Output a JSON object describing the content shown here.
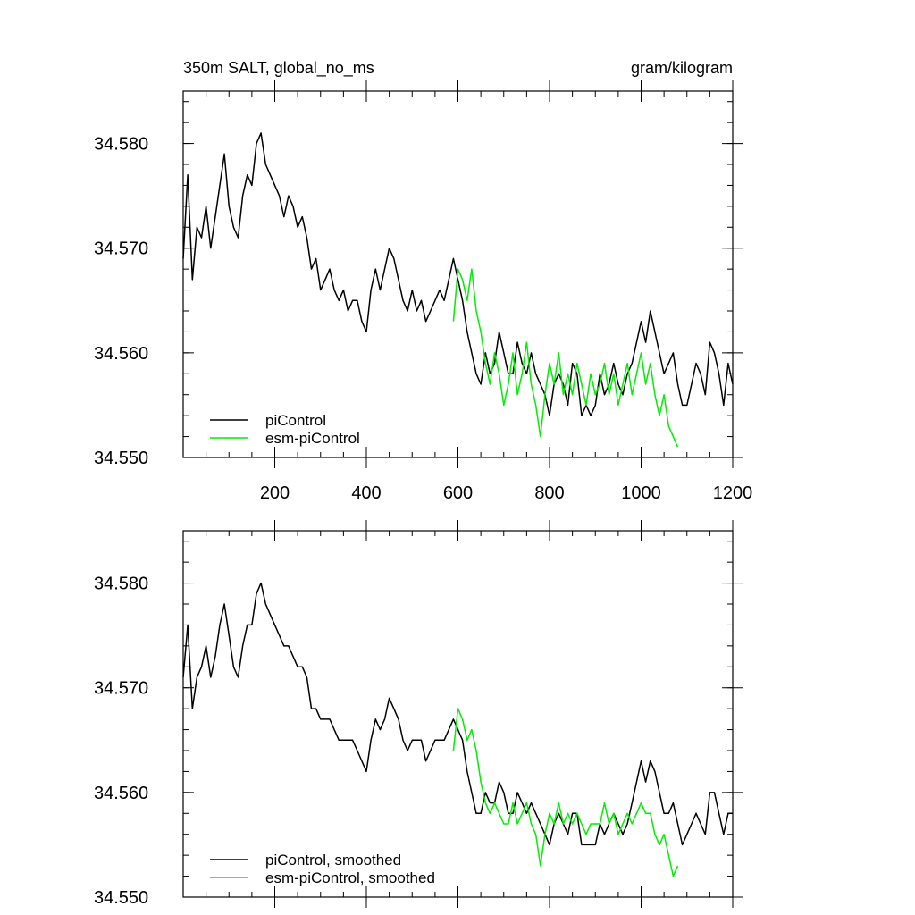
{
  "header": {
    "title": "350m SALT, global_no_ms",
    "units": "gram/kilogram"
  },
  "colors": {
    "piControl": "#000000",
    "esm-piControl": "#00ee00"
  },
  "chart_data": [
    {
      "type": "line",
      "panel": "top",
      "xlim": [
        0,
        1200
      ],
      "ylim": [
        34.55,
        34.585
      ],
      "xticks": [
        200,
        400,
        600,
        800,
        1000,
        1200
      ],
      "xtick_labels": [
        "200",
        "400",
        "600",
        "800",
        "1000",
        "1200"
      ],
      "yticks": [
        34.55,
        34.56,
        34.57,
        34.58
      ],
      "ytick_labels": [
        "34.550",
        "34.560",
        "34.570",
        "34.580"
      ],
      "legend_position": "bottom-left",
      "legend": [
        "piControl",
        "esm-piControl"
      ],
      "series": [
        {
          "name": "piControl",
          "color": "#000000",
          "x": [
            0,
            10,
            20,
            30,
            40,
            50,
            60,
            70,
            80,
            90,
            100,
            110,
            120,
            130,
            140,
            150,
            160,
            170,
            180,
            190,
            200,
            210,
            220,
            230,
            240,
            250,
            260,
            270,
            280,
            290,
            300,
            310,
            320,
            330,
            340,
            350,
            360,
            370,
            380,
            390,
            400,
            410,
            420,
            430,
            440,
            450,
            460,
            470,
            480,
            490,
            500,
            510,
            520,
            530,
            540,
            550,
            560,
            570,
            580,
            590,
            600,
            610,
            620,
            630,
            640,
            650,
            660,
            670,
            680,
            690,
            700,
            710,
            720,
            730,
            740,
            750,
            760,
            770,
            780,
            790,
            800,
            810,
            820,
            830,
            840,
            850,
            860,
            870,
            880,
            890,
            900,
            910,
            920,
            930,
            940,
            950,
            960,
            970,
            980,
            990,
            1000,
            1010,
            1020,
            1030,
            1040,
            1050,
            1060,
            1070,
            1080,
            1090,
            1100,
            1110,
            1120,
            1130,
            1140,
            1150,
            1160,
            1170,
            1180,
            1190,
            1200
          ],
          "y": [
            34.569,
            34.577,
            34.567,
            34.572,
            34.571,
            34.574,
            34.57,
            34.573,
            34.576,
            34.579,
            34.574,
            34.572,
            34.571,
            34.575,
            34.577,
            34.576,
            34.58,
            34.581,
            34.578,
            34.577,
            34.576,
            34.575,
            34.573,
            34.575,
            34.574,
            34.572,
            34.573,
            34.571,
            34.568,
            34.569,
            34.566,
            34.567,
            34.568,
            34.566,
            34.565,
            34.566,
            34.564,
            34.565,
            34.565,
            34.563,
            34.562,
            34.566,
            34.568,
            34.566,
            34.568,
            34.57,
            34.569,
            34.567,
            34.565,
            34.564,
            34.566,
            34.564,
            34.565,
            34.563,
            34.564,
            34.565,
            34.566,
            34.565,
            34.567,
            34.569,
            34.567,
            34.565,
            34.562,
            34.56,
            34.558,
            34.557,
            34.56,
            34.558,
            34.559,
            34.562,
            34.56,
            34.558,
            34.558,
            34.561,
            34.559,
            34.558,
            34.56,
            34.558,
            34.557,
            34.556,
            34.554,
            34.557,
            34.558,
            34.557,
            34.555,
            34.559,
            34.558,
            34.554,
            34.555,
            34.554,
            34.555,
            34.558,
            34.556,
            34.557,
            34.559,
            34.557,
            34.556,
            34.558,
            34.559,
            34.561,
            34.563,
            34.561,
            34.564,
            34.562,
            34.56,
            34.558,
            34.559,
            34.56,
            34.557,
            34.555,
            34.555,
            34.557,
            34.559,
            34.558,
            34.556,
            34.561,
            34.56,
            34.558,
            34.555,
            34.559,
            34.557
          ]
        },
        {
          "name": "esm-piControl",
          "color": "#00ee00",
          "x": [
            590,
            600,
            610,
            620,
            630,
            640,
            650,
            660,
            670,
            680,
            690,
            700,
            710,
            720,
            730,
            740,
            750,
            760,
            770,
            780,
            790,
            800,
            810,
            820,
            830,
            840,
            850,
            860,
            870,
            880,
            890,
            900,
            910,
            920,
            930,
            940,
            950,
            960,
            970,
            980,
            990,
            1000,
            1010,
            1020,
            1030,
            1040,
            1050,
            1060,
            1070,
            1080
          ],
          "y": [
            34.563,
            34.568,
            34.567,
            34.565,
            34.568,
            34.564,
            34.562,
            34.559,
            34.557,
            34.56,
            34.558,
            34.555,
            34.557,
            34.56,
            34.556,
            34.558,
            34.561,
            34.557,
            34.555,
            34.552,
            34.556,
            34.559,
            34.557,
            34.56,
            34.556,
            34.558,
            34.556,
            34.559,
            34.557,
            34.555,
            34.558,
            34.556,
            34.557,
            34.559,
            34.556,
            34.558,
            34.555,
            34.557,
            34.559,
            34.556,
            34.558,
            34.56,
            34.557,
            34.559,
            34.556,
            34.554,
            34.556,
            34.553,
            34.552,
            34.551
          ]
        }
      ]
    },
    {
      "type": "line",
      "panel": "bottom",
      "xlim": [
        0,
        1200
      ],
      "ylim": [
        34.55,
        34.585
      ],
      "xticks": [
        200,
        400,
        600,
        800,
        1000,
        1200
      ],
      "yticks": [
        34.55,
        34.56,
        34.57,
        34.58
      ],
      "ytick_labels": [
        "34.550",
        "34.560",
        "34.570",
        "34.580"
      ],
      "legend_position": "bottom-left",
      "legend": [
        "piControl, smoothed",
        "esm-piControl, smoothed"
      ],
      "series": [
        {
          "name": "piControl, smoothed",
          "color": "#000000",
          "x": [
            0,
            10,
            20,
            30,
            40,
            50,
            60,
            70,
            80,
            90,
            100,
            110,
            120,
            130,
            140,
            150,
            160,
            170,
            180,
            190,
            200,
            210,
            220,
            230,
            240,
            250,
            260,
            270,
            280,
            290,
            300,
            310,
            320,
            330,
            340,
            350,
            360,
            370,
            380,
            390,
            400,
            410,
            420,
            430,
            440,
            450,
            460,
            470,
            480,
            490,
            500,
            510,
            520,
            530,
            540,
            550,
            560,
            570,
            580,
            590,
            600,
            610,
            620,
            630,
            640,
            650,
            660,
            670,
            680,
            690,
            700,
            710,
            720,
            730,
            740,
            750,
            760,
            770,
            780,
            790,
            800,
            810,
            820,
            830,
            840,
            850,
            860,
            870,
            880,
            890,
            900,
            910,
            920,
            930,
            940,
            950,
            960,
            970,
            980,
            990,
            1000,
            1010,
            1020,
            1030,
            1040,
            1050,
            1060,
            1070,
            1080,
            1090,
            1100,
            1110,
            1120,
            1130,
            1140,
            1150,
            1160,
            1170,
            1180,
            1190,
            1200
          ],
          "y": [
            34.571,
            34.576,
            34.568,
            34.571,
            34.572,
            34.574,
            34.571,
            34.573,
            34.576,
            34.578,
            34.575,
            34.572,
            34.571,
            34.574,
            34.576,
            34.576,
            34.579,
            34.58,
            34.578,
            34.577,
            34.576,
            34.575,
            34.574,
            34.574,
            34.573,
            34.572,
            34.572,
            34.571,
            34.568,
            34.568,
            34.567,
            34.567,
            34.567,
            34.566,
            34.565,
            34.565,
            34.565,
            34.565,
            34.564,
            34.563,
            34.562,
            34.565,
            34.567,
            34.566,
            34.567,
            34.569,
            34.568,
            34.567,
            34.565,
            34.564,
            34.565,
            34.565,
            34.565,
            34.563,
            34.564,
            34.565,
            34.565,
            34.565,
            34.566,
            34.567,
            34.566,
            34.565,
            34.562,
            34.56,
            34.558,
            34.558,
            34.56,
            34.559,
            34.559,
            34.561,
            34.56,
            34.558,
            34.558,
            34.56,
            34.559,
            34.558,
            34.559,
            34.558,
            34.557,
            34.556,
            34.555,
            34.557,
            34.558,
            34.557,
            34.556,
            34.558,
            34.558,
            34.555,
            34.555,
            34.555,
            34.555,
            34.557,
            34.556,
            34.557,
            34.558,
            34.557,
            34.556,
            34.557,
            34.559,
            34.561,
            34.563,
            34.561,
            34.563,
            34.562,
            34.56,
            34.558,
            34.558,
            34.559,
            34.557,
            34.555,
            34.556,
            34.557,
            34.558,
            34.557,
            34.556,
            34.56,
            34.56,
            34.558,
            34.556,
            34.558,
            34.558
          ]
        },
        {
          "name": "esm-piControl, smoothed",
          "color": "#00ee00",
          "x": [
            590,
            600,
            610,
            620,
            630,
            640,
            650,
            660,
            670,
            680,
            690,
            700,
            710,
            720,
            730,
            740,
            750,
            760,
            770,
            780,
            790,
            800,
            810,
            820,
            830,
            840,
            850,
            860,
            870,
            880,
            890,
            900,
            910,
            920,
            930,
            940,
            950,
            960,
            970,
            980,
            990,
            1000,
            1010,
            1020,
            1030,
            1040,
            1050,
            1060,
            1070,
            1080
          ],
          "y": [
            34.564,
            34.568,
            34.567,
            34.565,
            34.566,
            34.564,
            34.561,
            34.559,
            34.558,
            34.559,
            34.558,
            34.557,
            34.557,
            34.559,
            34.557,
            34.558,
            34.559,
            34.557,
            34.556,
            34.553,
            34.556,
            34.558,
            34.557,
            34.559,
            34.557,
            34.558,
            34.557,
            34.558,
            34.557,
            34.556,
            34.557,
            34.557,
            34.557,
            34.559,
            34.557,
            34.558,
            34.556,
            34.557,
            34.558,
            34.557,
            34.558,
            34.559,
            34.558,
            34.558,
            34.556,
            34.555,
            34.556,
            34.554,
            34.552,
            34.553
          ]
        }
      ]
    }
  ]
}
